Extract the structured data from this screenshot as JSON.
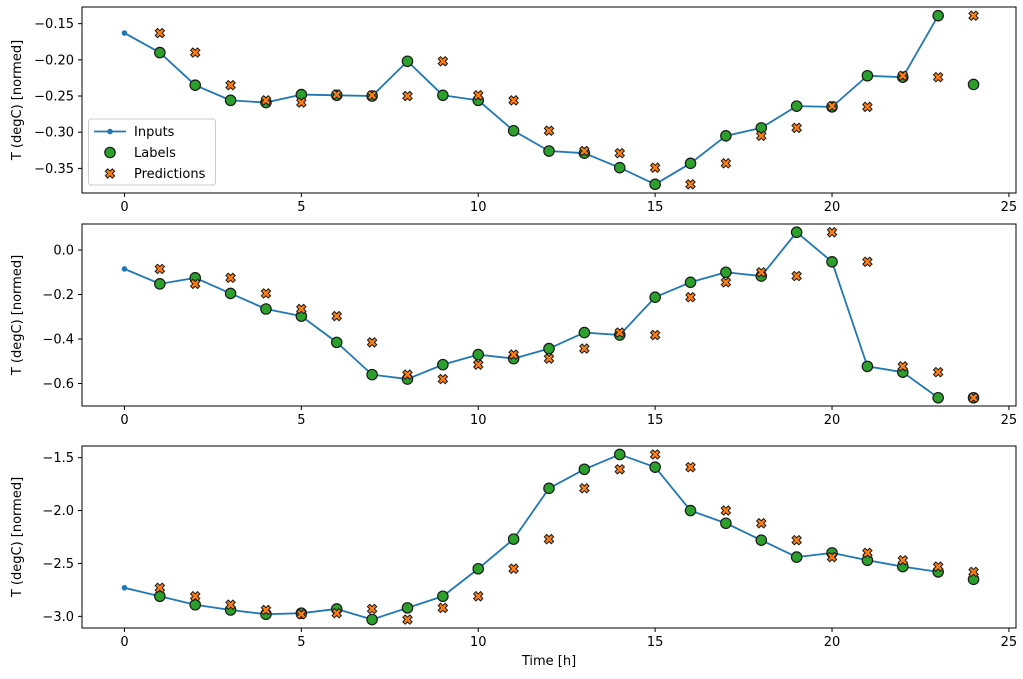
{
  "figure": {
    "xlabel": "Time [h]",
    "ylabel": "T (degC) [normed]"
  },
  "colors": {
    "inputs": "#1f77b4",
    "labels": "#2ca02c",
    "predictions": "#ff7f0e",
    "marker_edge": "#1a1a1a",
    "spine": "#000000",
    "legend_border": "#cccccc"
  },
  "legend": {
    "position": "upper-left-of-first-subplot",
    "items": [
      {
        "label": "Inputs",
        "marker": "line-dot"
      },
      {
        "label": "Labels",
        "marker": "circle"
      },
      {
        "label": "Predictions",
        "marker": "x"
      }
    ]
  },
  "chart_data": [
    {
      "type": "line",
      "title": "",
      "ylabel": "T (degC) [normed]",
      "xlabel": "",
      "grid": false,
      "xlim": [
        -1.2,
        25.2
      ],
      "ylim": [
        -0.384,
        -0.127
      ],
      "xticks": [
        0,
        5,
        10,
        15,
        20,
        25
      ],
      "xtick_labels": [
        "0",
        "5",
        "10",
        "15",
        "20",
        "25"
      ],
      "yticks": [
        -0.15,
        -0.2,
        -0.25,
        -0.3,
        -0.35
      ],
      "ytick_labels": [
        "−0.15",
        "−0.20",
        "−0.25",
        "−0.30",
        "−0.35"
      ],
      "series": [
        {
          "name": "Inputs",
          "style": "line-dot",
          "x": [
            0,
            1,
            2,
            3,
            4,
            5,
            6,
            7,
            8,
            9,
            10,
            11,
            12,
            13,
            14,
            15,
            16,
            17,
            18,
            19,
            20,
            21,
            22,
            23
          ],
          "y": [
            -0.163,
            -0.19,
            -0.235,
            -0.256,
            -0.259,
            -0.248,
            -0.249,
            -0.25,
            -0.202,
            -0.249,
            -0.256,
            -0.298,
            -0.326,
            -0.329,
            -0.349,
            -0.372,
            -0.343,
            -0.305,
            -0.294,
            -0.264,
            -0.265,
            -0.222,
            -0.224,
            -0.139
          ]
        },
        {
          "name": "Labels",
          "style": "circle",
          "x": [
            1,
            2,
            3,
            4,
            5,
            6,
            7,
            8,
            9,
            10,
            11,
            12,
            13,
            14,
            15,
            16,
            17,
            18,
            19,
            20,
            21,
            22,
            23,
            24
          ],
          "y": [
            -0.19,
            -0.235,
            -0.256,
            -0.259,
            -0.248,
            -0.249,
            -0.25,
            -0.202,
            -0.249,
            -0.256,
            -0.298,
            -0.326,
            -0.329,
            -0.349,
            -0.372,
            -0.343,
            -0.305,
            -0.294,
            -0.264,
            -0.265,
            -0.222,
            -0.224,
            -0.139,
            -0.234
          ]
        },
        {
          "name": "Predictions",
          "style": "x",
          "x": [
            1,
            2,
            3,
            4,
            5,
            6,
            7,
            8,
            9,
            10,
            11,
            12,
            13,
            14,
            15,
            16,
            17,
            18,
            19,
            20,
            21,
            22,
            23,
            24
          ],
          "y": [
            -0.163,
            -0.19,
            -0.235,
            -0.256,
            -0.259,
            -0.248,
            -0.249,
            -0.25,
            -0.202,
            -0.249,
            -0.256,
            -0.298,
            -0.326,
            -0.329,
            -0.349,
            -0.372,
            -0.343,
            -0.305,
            -0.294,
            -0.264,
            -0.265,
            -0.222,
            -0.224,
            -0.139
          ]
        }
      ]
    },
    {
      "type": "line",
      "title": "",
      "ylabel": "T (degC) [normed]",
      "xlabel": "",
      "grid": false,
      "xlim": [
        -1.2,
        25.2
      ],
      "ylim": [
        -0.701,
        0.117
      ],
      "xticks": [
        0,
        5,
        10,
        15,
        20,
        25
      ],
      "xtick_labels": [
        "0",
        "5",
        "10",
        "15",
        "20",
        "25"
      ],
      "yticks": [
        0.0,
        -0.2,
        -0.4,
        -0.6
      ],
      "ytick_labels": [
        "0.0",
        "−0.2",
        "−0.4",
        "−0.6"
      ],
      "series": [
        {
          "name": "Inputs",
          "style": "line-dot",
          "x": [
            0,
            1,
            2,
            3,
            4,
            5,
            6,
            7,
            8,
            9,
            10,
            11,
            12,
            13,
            14,
            15,
            16,
            17,
            18,
            19,
            20,
            21,
            22,
            23
          ],
          "y": [
            -0.085,
            -0.152,
            -0.125,
            -0.195,
            -0.265,
            -0.297,
            -0.415,
            -0.56,
            -0.58,
            -0.515,
            -0.47,
            -0.488,
            -0.443,
            -0.371,
            -0.382,
            -0.212,
            -0.145,
            -0.1,
            -0.117,
            0.08,
            -0.053,
            -0.523,
            -0.549,
            -0.664
          ]
        },
        {
          "name": "Labels",
          "style": "circle",
          "x": [
            1,
            2,
            3,
            4,
            5,
            6,
            7,
            8,
            9,
            10,
            11,
            12,
            13,
            14,
            15,
            16,
            17,
            18,
            19,
            20,
            21,
            22,
            23,
            24
          ],
          "y": [
            -0.152,
            -0.125,
            -0.195,
            -0.265,
            -0.297,
            -0.415,
            -0.56,
            -0.58,
            -0.515,
            -0.47,
            -0.488,
            -0.443,
            -0.371,
            -0.382,
            -0.212,
            -0.145,
            -0.1,
            -0.117,
            0.08,
            -0.053,
            -0.523,
            -0.549,
            -0.664,
            -0.664
          ]
        },
        {
          "name": "Predictions",
          "style": "x",
          "x": [
            1,
            2,
            3,
            4,
            5,
            6,
            7,
            8,
            9,
            10,
            11,
            12,
            13,
            14,
            15,
            16,
            17,
            18,
            19,
            20,
            21,
            22,
            23,
            24
          ],
          "y": [
            -0.085,
            -0.152,
            -0.125,
            -0.195,
            -0.265,
            -0.297,
            -0.415,
            -0.56,
            -0.58,
            -0.515,
            -0.47,
            -0.488,
            -0.443,
            -0.371,
            -0.382,
            -0.212,
            -0.145,
            -0.1,
            -0.117,
            0.08,
            -0.053,
            -0.523,
            -0.549,
            -0.664
          ]
        }
      ]
    },
    {
      "type": "line",
      "title": "",
      "ylabel": "T (degC) [normed]",
      "xlabel": "Time [h]",
      "grid": false,
      "xlim": [
        -1.2,
        25.2
      ],
      "ylim": [
        -3.11,
        -1.39
      ],
      "xticks": [
        0,
        5,
        10,
        15,
        20,
        25
      ],
      "xtick_labels": [
        "0",
        "5",
        "10",
        "15",
        "20",
        "25"
      ],
      "yticks": [
        -1.5,
        -2.0,
        -2.5,
        -3.0
      ],
      "ytick_labels": [
        "−1.5",
        "−2.0",
        "−2.5",
        "−3.0"
      ],
      "series": [
        {
          "name": "Inputs",
          "style": "line-dot",
          "x": [
            0,
            1,
            2,
            3,
            4,
            5,
            6,
            7,
            8,
            9,
            10,
            11,
            12,
            13,
            14,
            15,
            16,
            17,
            18,
            19,
            20,
            21,
            22,
            23
          ],
          "y": [
            -2.73,
            -2.81,
            -2.89,
            -2.94,
            -2.98,
            -2.97,
            -2.93,
            -3.03,
            -2.92,
            -2.81,
            -2.55,
            -2.27,
            -1.79,
            -1.61,
            -1.47,
            -1.59,
            -2.0,
            -2.12,
            -2.28,
            -2.44,
            -2.4,
            -2.47,
            -2.53,
            -2.58
          ]
        },
        {
          "name": "Labels",
          "style": "circle",
          "x": [
            1,
            2,
            3,
            4,
            5,
            6,
            7,
            8,
            9,
            10,
            11,
            12,
            13,
            14,
            15,
            16,
            17,
            18,
            19,
            20,
            21,
            22,
            23,
            24
          ],
          "y": [
            -2.81,
            -2.89,
            -2.94,
            -2.98,
            -2.97,
            -2.93,
            -3.03,
            -2.92,
            -2.81,
            -2.55,
            -2.27,
            -1.79,
            -1.61,
            -1.47,
            -1.59,
            -2.0,
            -2.12,
            -2.28,
            -2.44,
            -2.4,
            -2.47,
            -2.53,
            -2.58,
            -2.65
          ]
        },
        {
          "name": "Predictions",
          "style": "x",
          "x": [
            1,
            2,
            3,
            4,
            5,
            6,
            7,
            8,
            9,
            10,
            11,
            12,
            13,
            14,
            15,
            16,
            17,
            18,
            19,
            20,
            21,
            22,
            23,
            24
          ],
          "y": [
            -2.73,
            -2.81,
            -2.89,
            -2.94,
            -2.98,
            -2.97,
            -2.93,
            -3.03,
            -2.92,
            -2.81,
            -2.55,
            -2.27,
            -1.79,
            -1.61,
            -1.47,
            -1.59,
            -2.0,
            -2.12,
            -2.28,
            -2.44,
            -2.4,
            -2.47,
            -2.53,
            -2.58
          ]
        }
      ]
    }
  ]
}
